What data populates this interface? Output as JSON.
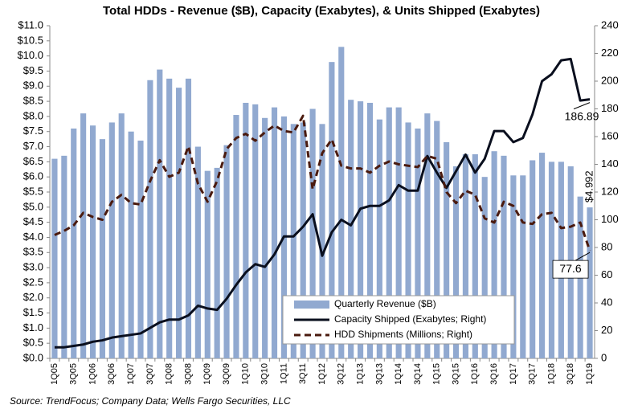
{
  "chart_data": {
    "type": "combo",
    "title": "Total HDDs - Revenue ($B), Capacity (Exabytes), & Units Shipped (Exabytes)",
    "source": "Source: TrendFocus; Company Data; Wells Fargo Securities, LLC",
    "categories": [
      "1Q05",
      null,
      "3Q05",
      null,
      "1Q06",
      null,
      "3Q06",
      null,
      "1Q07",
      null,
      "3Q07",
      null,
      "1Q08",
      null,
      "3Q08",
      null,
      "1Q09",
      null,
      "3Q09",
      null,
      "1Q10",
      null,
      "3Q10",
      null,
      "1Q11",
      null,
      "3Q11",
      null,
      "1Q12",
      null,
      "3Q12",
      null,
      "1Q13",
      null,
      "3Q13",
      null,
      "1Q14",
      null,
      "3Q14",
      null,
      "1Q15",
      null,
      "3Q15",
      null,
      "1Q16",
      null,
      "3Q16",
      null,
      "1Q17",
      null,
      "3Q17",
      null,
      "1Q18",
      null,
      "3Q18",
      null,
      "1Q19"
    ],
    "series": [
      {
        "name": "Quarterly Revenue ($B)",
        "type": "bar",
        "color": "#91a9d0",
        "axis": "y",
        "values": [
          6.6,
          6.7,
          7.6,
          8.1,
          7.7,
          7.25,
          7.8,
          8.1,
          7.5,
          7.2,
          9.2,
          9.55,
          9.25,
          8.95,
          9.25,
          7.0,
          6.2,
          6.3,
          7.05,
          8.05,
          8.45,
          8.4,
          7.95,
          8.3,
          8.0,
          7.75,
          7.8,
          8.25,
          7.75,
          9.8,
          10.3,
          8.55,
          8.5,
          8.45,
          7.9,
          8.3,
          8.3,
          7.8,
          7.6,
          8.1,
          7.85,
          7.15,
          6.35,
          6.75,
          6.75,
          6.0,
          6.85,
          6.7,
          6.05,
          6.05,
          6.55,
          6.8,
          6.5,
          6.5,
          6.35,
          5.35,
          4.992
        ],
        "value_labels": [
          null,
          null,
          null,
          null,
          null,
          null,
          null,
          null,
          null,
          null,
          null,
          null,
          null,
          null,
          null,
          null,
          null,
          null,
          null,
          null,
          null,
          null,
          null,
          null,
          null,
          null,
          null,
          null,
          null,
          null,
          null,
          null,
          null,
          null,
          null,
          null,
          null,
          null,
          null,
          null,
          null,
          null,
          null,
          null,
          null,
          null,
          null,
          null,
          null,
          null,
          null,
          null,
          null,
          null,
          null,
          null,
          "$4.992"
        ]
      },
      {
        "name": "Capacity Shipped (Exabytes; Right)",
        "type": "line",
        "color": "#0a0f1e",
        "axis": "y2",
        "values": [
          8,
          8,
          9,
          10,
          12,
          13,
          15,
          16,
          17,
          18,
          22,
          26,
          28,
          28,
          31,
          38,
          36,
          35,
          43,
          53,
          62,
          68,
          66,
          75,
          88,
          88,
          95,
          104,
          74,
          91,
          100,
          96,
          108,
          110,
          110,
          114,
          125,
          121,
          121,
          146,
          134,
          123,
          135,
          147,
          134,
          144,
          164,
          164,
          156,
          159,
          176,
          200,
          205,
          215,
          216,
          186,
          186.89
        ],
        "value_labels": [
          null,
          null,
          null,
          null,
          null,
          null,
          null,
          null,
          null,
          null,
          null,
          null,
          null,
          null,
          null,
          null,
          null,
          null,
          null,
          null,
          null,
          null,
          null,
          null,
          null,
          null,
          null,
          null,
          null,
          null,
          null,
          null,
          null,
          null,
          null,
          null,
          null,
          null,
          null,
          null,
          null,
          null,
          null,
          null,
          null,
          null,
          null,
          null,
          null,
          null,
          null,
          null,
          null,
          null,
          null,
          null,
          "186.89"
        ]
      },
      {
        "name": "HDD Shipments (Millions; Right)",
        "type": "dashed-line",
        "color": "#4a1a0e",
        "axis": "y2",
        "values": [
          89,
          92,
          96,
          105,
          102,
          100,
          113,
          118,
          112,
          111,
          128,
          143,
          131,
          134,
          153,
          126,
          113,
          128,
          151,
          159,
          162,
          157,
          163,
          168,
          164,
          163,
          175,
          122,
          148,
          158,
          139,
          137,
          137,
          134,
          139,
          142,
          140,
          139,
          138,
          146,
          144,
          120,
          112,
          121,
          118,
          101,
          98,
          113,
          110,
          98,
          97,
          104,
          105,
          94,
          95,
          98,
          77.6
        ],
        "value_labels": [
          null,
          null,
          null,
          null,
          null,
          null,
          null,
          null,
          null,
          null,
          null,
          null,
          null,
          null,
          null,
          null,
          null,
          null,
          null,
          null,
          null,
          null,
          null,
          null,
          null,
          null,
          null,
          null,
          null,
          null,
          null,
          null,
          null,
          null,
          null,
          null,
          null,
          null,
          null,
          null,
          null,
          null,
          null,
          null,
          null,
          null,
          null,
          null,
          null,
          null,
          null,
          null,
          null,
          null,
          null,
          null,
          "77.6"
        ]
      }
    ],
    "ylim": [
      0,
      11
    ],
    "yticks": [
      {
        "value": 0,
        "label": "$0.0"
      },
      {
        "value": 0.5,
        "label": "$0.5"
      },
      {
        "value": 1,
        "label": "$1.0"
      },
      {
        "value": 1.5,
        "label": "$1.5"
      },
      {
        "value": 2,
        "label": "$2.0"
      },
      {
        "value": 2.5,
        "label": "$2.5"
      },
      {
        "value": 3,
        "label": "$3.0"
      },
      {
        "value": 3.5,
        "label": "$3.5"
      },
      {
        "value": 4,
        "label": "$4.0"
      },
      {
        "value": 4.5,
        "label": "$4.5"
      },
      {
        "value": 5,
        "label": "$5.0"
      },
      {
        "value": 5.5,
        "label": "$5.5"
      },
      {
        "value": 6,
        "label": "$6.0"
      },
      {
        "value": 6.5,
        "label": "$6.5"
      },
      {
        "value": 7,
        "label": "$7.0"
      },
      {
        "value": 7.5,
        "label": "$7.5"
      },
      {
        "value": 8,
        "label": "$8.0"
      },
      {
        "value": 8.5,
        "label": "$8.5"
      },
      {
        "value": 9,
        "label": "$9.0"
      },
      {
        "value": 9.5,
        "label": "$9.5"
      },
      {
        "value": 10,
        "label": "$10.0"
      },
      {
        "value": 10.5,
        "label": "$10.5"
      },
      {
        "value": 11,
        "label": "$11.0"
      }
    ],
    "y2lim": [
      0,
      240
    ],
    "y2ticks": [
      0,
      20,
      40,
      60,
      80,
      100,
      120,
      140,
      160,
      180,
      200,
      220,
      240
    ],
    "grid": false,
    "legend": "lower right"
  }
}
